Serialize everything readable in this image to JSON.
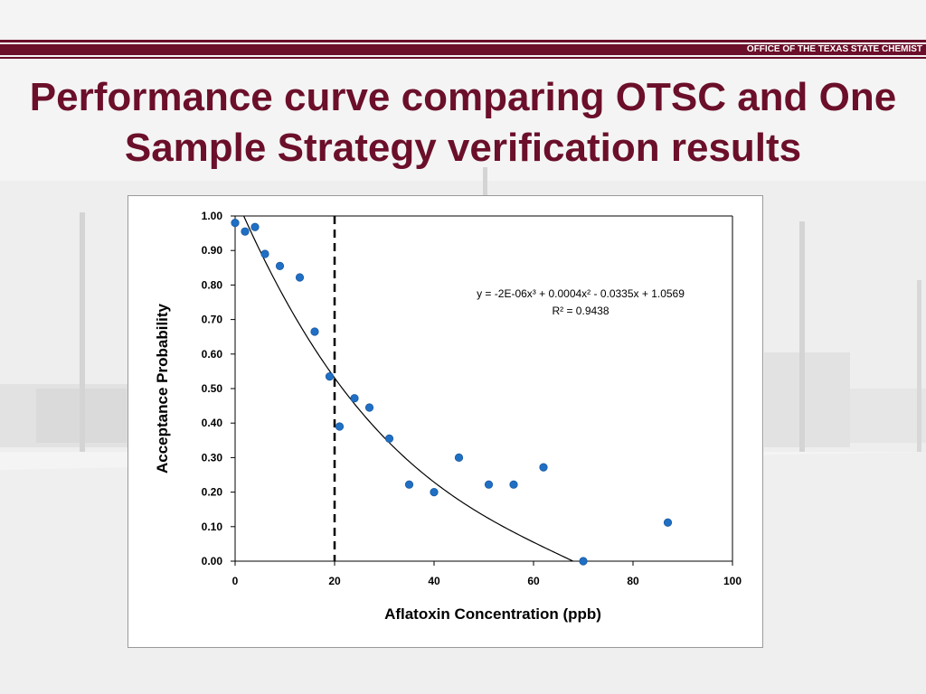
{
  "header": {
    "org_name": "OFFICE OF THE TEXAS STATE CHEMIST"
  },
  "slide": {
    "title": "Performance curve comparing OTSC and One Sample Strategy verification results"
  },
  "colors": {
    "brand": "#6b0f2a",
    "points": "#1f6fc5",
    "curve": "#000000"
  },
  "chart_data": {
    "type": "scatter",
    "xlabel": "Aflatoxin Concentration (ppb)",
    "ylabel": "Acceptance Probability",
    "xlim": [
      0,
      100
    ],
    "ylim": [
      0,
      1
    ],
    "xticks": [
      "0",
      "20",
      "40",
      "60",
      "80",
      "100"
    ],
    "yticks": [
      "0.00",
      "0.10",
      "0.20",
      "0.30",
      "0.40",
      "0.50",
      "0.60",
      "0.70",
      "0.80",
      "0.90",
      "1.00"
    ],
    "grid": false,
    "points": [
      [
        0,
        0.98
      ],
      [
        2,
        0.955
      ],
      [
        4,
        0.968
      ],
      [
        6,
        0.89
      ],
      [
        9,
        0.855
      ],
      [
        13,
        0.822
      ],
      [
        16,
        0.665
      ],
      [
        19,
        0.535
      ],
      [
        21,
        0.39
      ],
      [
        24,
        0.472
      ],
      [
        27,
        0.445
      ],
      [
        31,
        0.355
      ],
      [
        35,
        0.222
      ],
      [
        40,
        0.2
      ],
      [
        45,
        0.3
      ],
      [
        51,
        0.222
      ],
      [
        56,
        0.222
      ],
      [
        62,
        0.272
      ],
      [
        70,
        0.0
      ],
      [
        87,
        0.112
      ]
    ],
    "trendline": {
      "type": "polynomial",
      "coefficients": [
        -2e-06,
        0.0004,
        -0.0335,
        1.0569
      ],
      "equation": "y = -2E-06x³ + 0.0004x² - 0.0335x + 1.0569",
      "r_squared": "R² = 0.9438"
    },
    "reference_line": {
      "x": 20,
      "style": "dashed"
    }
  }
}
